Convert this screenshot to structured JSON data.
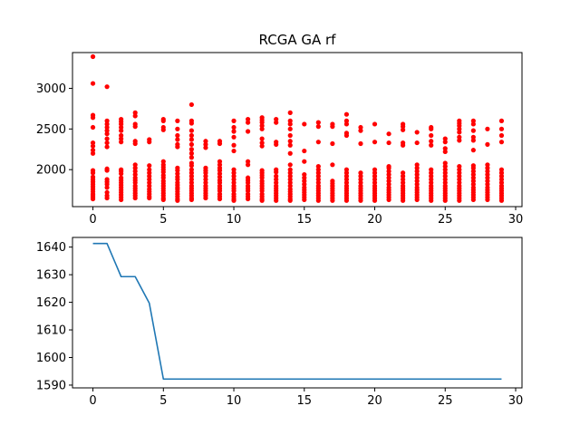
{
  "chart_data": [
    {
      "type": "scatter",
      "title": "RCGA GA rf",
      "xlabel": "",
      "ylabel": "",
      "xlim": [
        -1.45,
        30.45
      ],
      "ylim": [
        1545,
        3440
      ],
      "x_ticks": [
        0,
        5,
        10,
        15,
        20,
        25,
        30
      ],
      "y_ticks": [
        2000,
        2500,
        3000
      ],
      "grid": false,
      "color": "#ff0000",
      "series": [
        {
          "generations": [
            0,
            1,
            2,
            3,
            4,
            5,
            6,
            7,
            8,
            9,
            10,
            11,
            12,
            13,
            14,
            15,
            16,
            17,
            18,
            19,
            20,
            21,
            22,
            23,
            24,
            25,
            26,
            27,
            28,
            29
          ],
          "values": [
            [
              3390,
              3060,
              2670,
              2640,
              2520,
              2330,
              2290,
              2240,
              2200,
              1990,
              1960,
              1910,
              1880,
              1850,
              1820,
              1790,
              1760,
              1730,
              1700,
              1680,
              1660,
              1640
            ],
            [
              3020,
              2600,
              2560,
              2520,
              2480,
              2440,
              2380,
              2330,
              2280,
              2010,
              1990,
              1880,
              1850,
              1820,
              1780,
              1720,
              1680,
              1650
            ],
            [
              2620,
              2590,
              2560,
              2520,
              2480,
              2420,
              2380,
              2340,
              2000,
              1980,
              1950,
              1900,
              1870,
              1840,
              1810,
              1780,
              1750,
              1720,
              1690,
              1660,
              1630
            ],
            [
              2700,
              2660,
              2560,
              2530,
              2350,
              2320,
              2060,
              2020,
              1980,
              1940,
              1900,
              1870,
              1840,
              1800,
              1770,
              1740,
              1710,
              1680,
              1650
            ],
            [
              2370,
              2340,
              2050,
              2000,
              1960,
              1920,
              1880,
              1840,
              1800,
              1760,
              1730,
              1700,
              1670,
              1650
            ],
            [
              2620,
              2600,
              2520,
              2490,
              2100,
              2060,
              2030,
              2000,
              1970,
              1930,
              1900,
              1860,
              1830,
              1800,
              1770,
              1740,
              1710,
              1680,
              1650,
              1630
            ],
            [
              2600,
              2500,
              2420,
              2370,
              2310,
              2280,
              2020,
              1990,
              1950,
              1910,
              1880,
              1840,
              1810,
              1780,
              1760,
              1730,
              1700,
              1670,
              1640,
              1620
            ],
            [
              2800,
              2600,
              2570,
              2480,
              2420,
              2370,
              2310,
              2250,
              2200,
              2150,
              2080,
              2050,
              2000,
              1960,
              1920,
              1880,
              1840,
              1800,
              1770,
              1740,
              1710,
              1680,
              1650,
              1630
            ],
            [
              2350,
              2310,
              2270,
              2020,
              1990,
              1960,
              1920,
              1880,
              1840,
              1800,
              1770,
              1740,
              1710,
              1680,
              1650
            ],
            [
              2350,
              2320,
              2100,
              2060,
              2020,
              1990,
              1950,
              1910,
              1870,
              1840,
              1800,
              1770,
              1740,
              1700,
              1670,
              1640
            ],
            [
              2600,
              2520,
              2470,
              2400,
              2300,
              2230,
              2000,
              1960,
              1920,
              1880,
              1840,
              1800,
              1770,
              1740,
              1700,
              1670,
              1640,
              1620
            ],
            [
              2620,
              2580,
              2470,
              2100,
              2060,
              1900,
              1870,
              1840,
              1800,
              1770,
              1740,
              1700,
              1670,
              1640
            ],
            [
              2640,
              2610,
              2580,
              2540,
              2500,
              2380,
              2330,
              2290,
              1990,
              1960,
              1930,
              1900,
              1860,
              1830,
              1800,
              1770,
              1740,
              1700,
              1670,
              1640,
              1620
            ],
            [
              2620,
              2580,
              2340,
              2310,
              2000,
              1970,
              1920,
              1880,
              1840,
              1800,
              1770,
              1740,
              1710,
              1680,
              1650,
              1620
            ],
            [
              2700,
              2600,
              2560,
              2500,
              2420,
              2350,
              2300,
              2200,
              2060,
              2000,
              1960,
              1920,
              1880,
              1840,
              1800,
              1760,
              1730,
              1700,
              1670,
              1640,
              1620
            ],
            [
              2560,
              2230,
              2100,
              1940,
              1900,
              1860,
              1820,
              1780,
              1750,
              1720,
              1690,
              1660,
              1630
            ],
            [
              2580,
              2530,
              2340,
              2040,
              2000,
              1960,
              1920,
              1880,
              1840,
              1800,
              1770,
              1740,
              1710,
              1680,
              1650,
              1620
            ],
            [
              2560,
              2530,
              2320,
              2060,
              1860,
              1830,
              1800,
              1770,
              1740,
              1710,
              1680,
              1650,
              1620
            ],
            [
              2680,
              2600,
              2560,
              2450,
              2420,
              2000,
              1960,
              1920,
              1880,
              1840,
              1800,
              1770,
              1740,
              1710,
              1680,
              1650,
              1620
            ],
            [
              2520,
              2480,
              2320,
              1960,
              1920,
              1880,
              1840,
              1800,
              1770,
              1740,
              1710,
              1680,
              1650,
              1620
            ],
            [
              2560,
              2340,
              2000,
              1960,
              1920,
              1880,
              1840,
              1800,
              1770,
              1740,
              1710,
              1680,
              1650,
              1620
            ],
            [
              2440,
              2330,
              2040,
              2020,
              1980,
              1940,
              1900,
              1860,
              1820,
              1780,
              1750,
              1720,
              1690,
              1660,
              1630
            ],
            [
              2560,
              2530,
              2490,
              2330,
              2300,
              1960,
              1920,
              1880,
              1840,
              1800,
              1770,
              1740,
              1710,
              1680,
              1650,
              1620
            ],
            [
              2460,
              2330,
              2060,
              2020,
              1980,
              1940,
              1900,
              1860,
              1820,
              1780,
              1750,
              1720,
              1690,
              1660,
              1630
            ],
            [
              2520,
              2500,
              2420,
              2350,
              2300,
              2000,
              1960,
              1920,
              1880,
              1840,
              1800,
              1770,
              1740,
              1710,
              1680,
              1650,
              1620
            ],
            [
              2380,
              2340,
              2260,
              2220,
              2080,
              2040,
              2000,
              1960,
              1920,
              1880,
              1840,
              1800,
              1770,
              1740,
              1710,
              1680,
              1650,
              1620
            ],
            [
              2600,
              2570,
              2540,
              2500,
              2460,
              2400,
              2360,
              2040,
              2000,
              1960,
              1920,
              1880,
              1840,
              1800,
              1770,
              1740,
              1710,
              1680,
              1650,
              1620
            ],
            [
              2600,
              2560,
              2480,
              2400,
              2360,
              2240,
              2050,
              2020,
              1980,
              1940,
              1900,
              1860,
              1820,
              1780,
              1750,
              1720,
              1690,
              1660,
              1630
            ],
            [
              2500,
              2310,
              2060,
              2020,
              1980,
              1940,
              1900,
              1860,
              1820,
              1780,
              1750,
              1720,
              1690,
              1660,
              1630
            ],
            [
              2600,
              2500,
              2420,
              2340,
              2000,
              1960,
              1920,
              1880,
              1840,
              1800,
              1770,
              1740,
              1710,
              1680,
              1650,
              1620
            ]
          ]
        }
      ]
    },
    {
      "type": "line",
      "title": "",
      "xlabel": "",
      "ylabel": "",
      "xlim": [
        -1.45,
        30.45
      ],
      "ylim": [
        1589,
        1643.5
      ],
      "x_ticks": [
        0,
        5,
        10,
        15,
        20,
        25,
        30
      ],
      "y_ticks": [
        1590,
        1600,
        1610,
        1620,
        1630,
        1640
      ],
      "grid": false,
      "color": "#1f77b4",
      "series": [
        {
          "x": [
            0,
            1,
            2,
            3,
            4,
            5,
            6,
            7,
            8,
            9,
            10,
            11,
            12,
            13,
            14,
            15,
            16,
            17,
            18,
            19,
            20,
            21,
            22,
            23,
            24,
            25,
            26,
            27,
            28,
            29
          ],
          "values": [
            1641.3,
            1641.3,
            1629.3,
            1629.3,
            1619.7,
            1592.2,
            1592.2,
            1592.2,
            1592.2,
            1592.2,
            1592.2,
            1592.2,
            1592.2,
            1592.2,
            1592.2,
            1592.2,
            1592.2,
            1592.2,
            1592.2,
            1592.2,
            1592.2,
            1592.2,
            1592.2,
            1592.2,
            1592.2,
            1592.2,
            1592.2,
            1592.2,
            1592.2,
            1592.2
          ]
        }
      ]
    }
  ]
}
